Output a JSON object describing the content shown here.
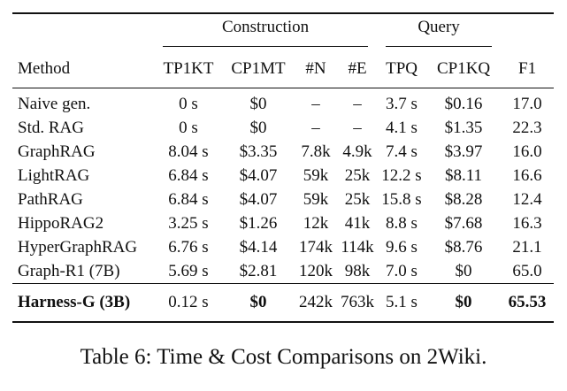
{
  "table": {
    "group_headers": {
      "construction": "Construction",
      "query": "Query"
    },
    "columns": [
      "Method",
      "TP1KT",
      "CP1MT",
      "#N",
      "#E",
      "TPQ",
      "CP1KQ",
      "F1"
    ],
    "rows": [
      [
        "Naive gen.",
        "0 s",
        "$0",
        "–",
        "–",
        "3.7 s",
        "$0.16",
        "17.0"
      ],
      [
        "Std. RAG",
        "0 s",
        "$0",
        "–",
        "–",
        "4.1 s",
        "$1.35",
        "22.3"
      ],
      [
        "GraphRAG",
        "8.04 s",
        "$3.35",
        "7.8k",
        "4.9k",
        "7.4 s",
        "$3.97",
        "16.0"
      ],
      [
        "LightRAG",
        "6.84 s",
        "$4.07",
        "59k",
        "25k",
        "12.2 s",
        "$8.11",
        "16.6"
      ],
      [
        "PathRAG",
        "6.84 s",
        "$4.07",
        "59k",
        "25k",
        "15.8 s",
        "$8.28",
        "12.4"
      ],
      [
        "HippoRAG2",
        "3.25 s",
        "$1.26",
        "12k",
        "41k",
        "8.8 s",
        "$7.68",
        "16.3"
      ],
      [
        "HyperGraphRAG",
        "6.76 s",
        "$4.14",
        "174k",
        "114k",
        "9.6 s",
        "$8.76",
        "21.1"
      ],
      [
        "Graph-R1 (7B)",
        "5.69 s",
        "$2.81",
        "120k",
        "98k",
        "7.0 s",
        "$0",
        "65.0"
      ]
    ],
    "highlight_row": [
      "Harness-G (3B)",
      "0.12 s",
      "$0",
      "242k",
      "763k",
      "5.1 s",
      "$0",
      "65.53"
    ],
    "highlight_bold": [
      true,
      false,
      true,
      false,
      false,
      false,
      true,
      true
    ]
  },
  "caption": "Table 6: Time & Cost Comparisons on 2Wiki."
}
